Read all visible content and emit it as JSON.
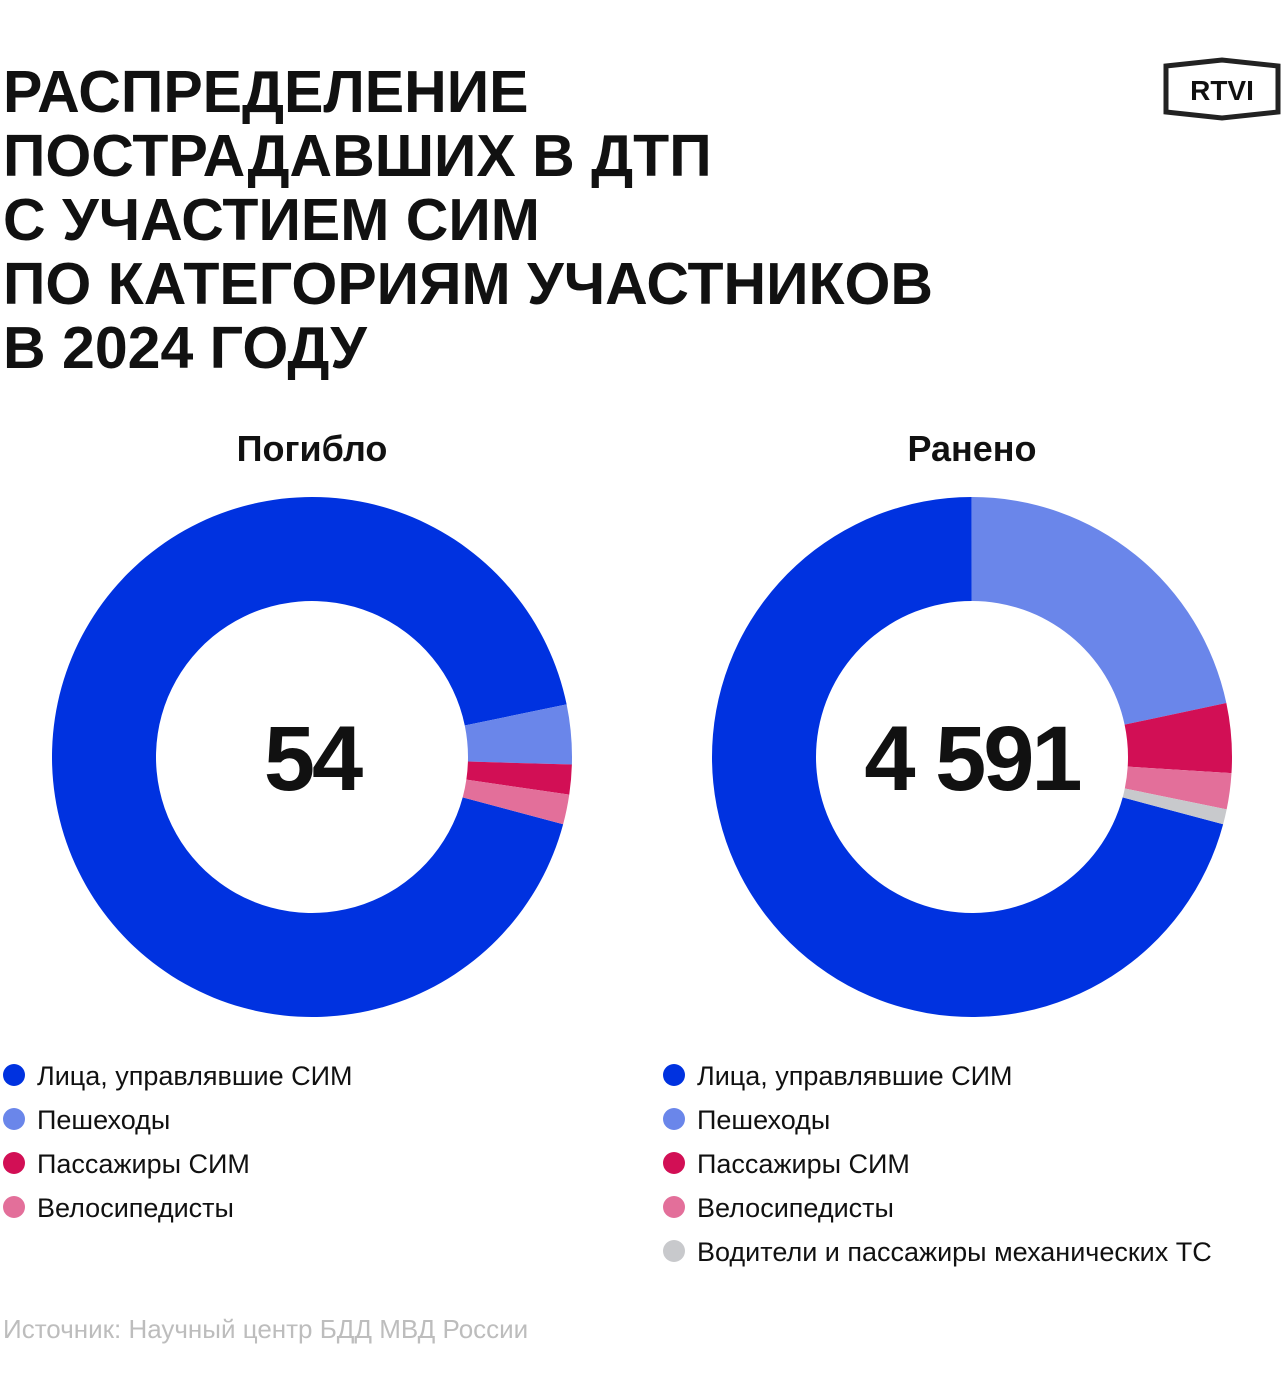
{
  "header": {
    "title": [
      "РАСПРЕДЕЛЕНИЕ",
      "ПОСТРАДАВШИХ В ДТП",
      "С УЧАСТИЕМ СИМ",
      "ПО КАТЕГОРИЯМ УЧАСТНИКОВ",
      "В 2024 ГОДУ"
    ],
    "logo": "RTVI"
  },
  "chart_data": [
    {
      "type": "donut",
      "title": "Погибло",
      "center_label": "54",
      "categories": [
        "Лица, управлявшие СИМ",
        "Пешеходы",
        "Пассажиры СИМ",
        "Велосипедисты"
      ],
      "values": [
        50,
        2,
        1,
        1
      ],
      "colors": [
        "#0032e0",
        "#6a86ea",
        "#d20f55",
        "#e36f9a"
      ]
    },
    {
      "type": "donut",
      "title": "Ранено",
      "center_label": "4 591",
      "categories": [
        "Лица, управлявшие СИМ",
        "Пешеходы",
        "Пассажиры СИМ",
        "Велосипедисты",
        "Водители и пассажиры механических ТС"
      ],
      "values": [
        3251,
        996,
        198,
        103,
        43
      ],
      "colors": [
        "#0032e0",
        "#6a86ea",
        "#d20f55",
        "#e36f9a",
        "#c8c9cc"
      ]
    }
  ],
  "source": "Источник: Научный центр БДД МВД России"
}
